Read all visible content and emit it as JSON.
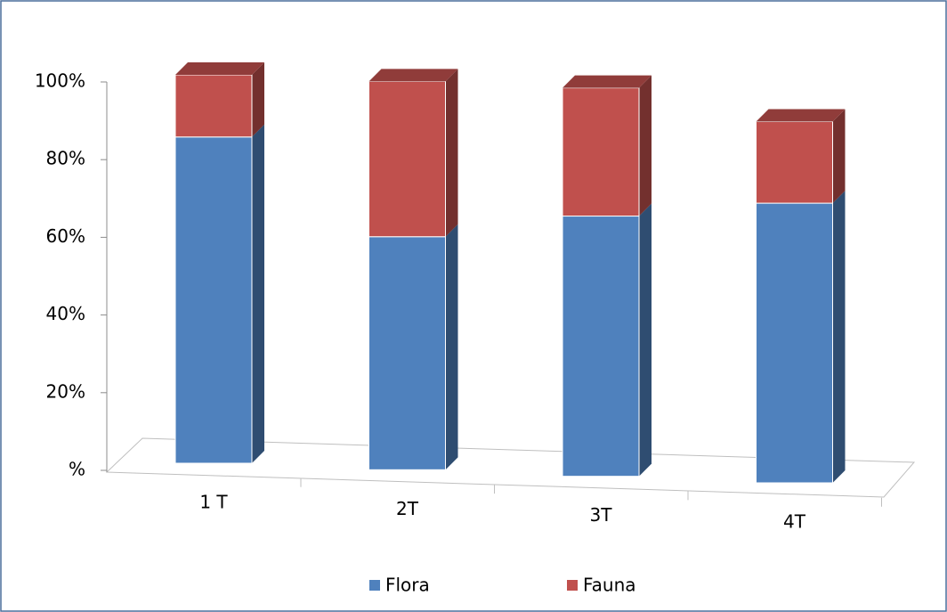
{
  "chart_data": {
    "type": "bar3d_stacked",
    "categories": [
      "1 T",
      "2T",
      "3T",
      "4T"
    ],
    "series": [
      {
        "name": "Flora",
        "color": "#4f81bd",
        "values": [
          84,
          60,
          67,
          72
        ]
      },
      {
        "name": "Fauna",
        "color": "#c0504d",
        "values": [
          16,
          40,
          33,
          21
        ]
      }
    ],
    "ylim": [
      0,
      100
    ],
    "yticks": [
      {
        "value": 0,
        "label": "%"
      },
      {
        "value": 20,
        "label": "20%"
      },
      {
        "value": 40,
        "label": "40%"
      },
      {
        "value": 60,
        "label": "60%"
      },
      {
        "value": 80,
        "label": "80%"
      },
      {
        "value": 100,
        "label": "100%"
      }
    ],
    "legend": "bottom"
  }
}
